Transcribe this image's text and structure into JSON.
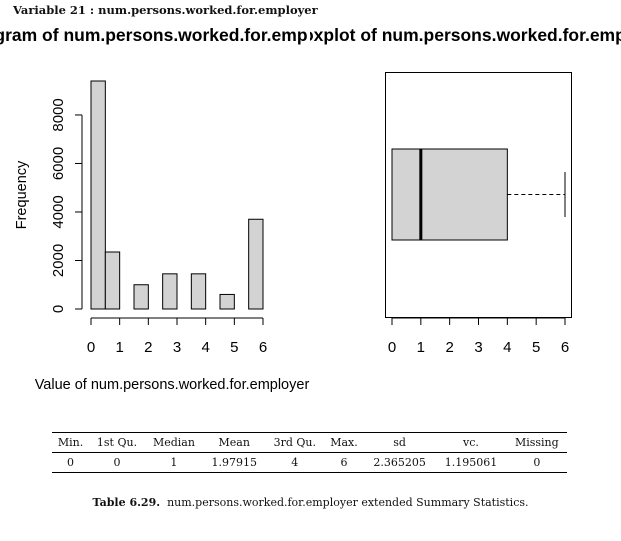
{
  "heading": "Variable 21 :  num.persons.worked.for.employer",
  "chart_data": [
    {
      "type": "bar",
      "title": "Histogram of num.persons.worked.for.employer",
      "xlabel": "Value of num.persons.worked.for.employer",
      "ylabel": "Frequency",
      "bins": [
        {
          "from": 0,
          "to": 0.5,
          "value": 9400
        },
        {
          "from": 0.5,
          "to": 1,
          "value": 2350
        },
        {
          "from": 1,
          "to": 1.5,
          "value": 0
        },
        {
          "from": 1.5,
          "to": 2,
          "value": 1000
        },
        {
          "from": 2,
          "to": 2.5,
          "value": 0
        },
        {
          "from": 2.5,
          "to": 3,
          "value": 1450
        },
        {
          "from": 3,
          "to": 3.5,
          "value": 0
        },
        {
          "from": 3.5,
          "to": 4,
          "value": 1450
        },
        {
          "from": 4,
          "to": 4.5,
          "value": 0
        },
        {
          "from": 4.5,
          "to": 5,
          "value": 600
        },
        {
          "from": 5,
          "to": 5.5,
          "value": 0
        },
        {
          "from": 5.5,
          "to": 6,
          "value": 3700
        }
      ],
      "xticks": [
        "0",
        "1",
        "2",
        "3",
        "4",
        "5",
        "6"
      ],
      "yticks": [
        "0",
        "2000",
        "4000",
        "6000",
        "8000"
      ],
      "xlim": [
        0,
        6
      ],
      "ylim": [
        0,
        9400
      ],
      "bar_color": "#d3d3d3"
    },
    {
      "type": "boxplot",
      "title": "Boxplot of num.persons.worked.for.employer",
      "orientation": "horizontal",
      "min": 0,
      "q1": 0,
      "median": 1,
      "q3": 4,
      "max": 6,
      "xticks": [
        "0",
        "1",
        "2",
        "3",
        "4",
        "5",
        "6"
      ],
      "xlim": [
        0,
        6
      ],
      "box_color": "#d3d3d3"
    }
  ],
  "table": {
    "headers": [
      "Min.",
      "1st Qu.",
      "Median",
      "Mean",
      "3rd Qu.",
      "Max.",
      "sd",
      "vc.",
      "Missing"
    ],
    "rows": [
      [
        "0",
        "0",
        "1",
        "1.97915",
        "4",
        "6",
        "2.365205",
        "1.195061",
        "0"
      ]
    ]
  },
  "caption": {
    "label": "Table 6.29.",
    "text": "num.persons.worked.for.employer extended Summary Statistics."
  }
}
